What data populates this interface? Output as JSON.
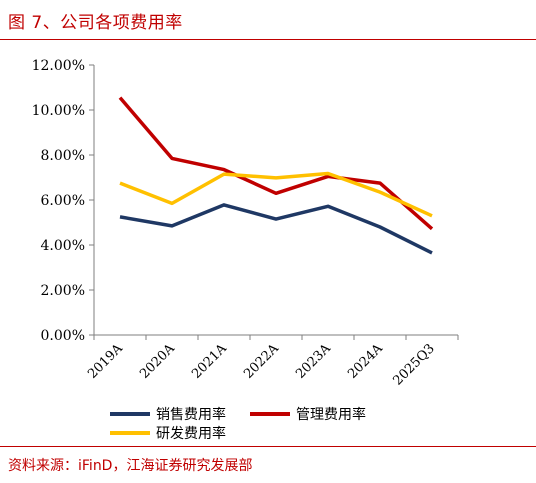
{
  "figure": {
    "title": "图 7、公司各项费用率",
    "source": "资料来源：iFinD，江海证券研究发展部"
  },
  "colors": {
    "accent": "#c00000"
  },
  "chart_data": {
    "type": "line",
    "categories": [
      "2019A",
      "2020A",
      "2021A",
      "2022A",
      "2023A",
      "2024A",
      "2025Q3"
    ],
    "series": [
      {
        "name": "销售费用率",
        "color": "#1f3864",
        "values": [
          5.25,
          4.85,
          5.78,
          5.15,
          5.72,
          4.8,
          3.65
        ]
      },
      {
        "name": "管理费用率",
        "color": "#c00000",
        "values": [
          10.55,
          7.85,
          7.35,
          6.3,
          7.05,
          6.75,
          4.72
        ]
      },
      {
        "name": "研发费用率",
        "color": "#ffc000",
        "values": [
          6.75,
          5.85,
          7.15,
          6.98,
          7.18,
          6.35,
          5.3
        ]
      }
    ],
    "ylim": [
      0,
      12
    ],
    "yticks": [
      "0.00%",
      "2.00%",
      "4.00%",
      "6.00%",
      "8.00%",
      "10.00%",
      "12.00%"
    ],
    "grid": false,
    "legend_position": "bottom"
  }
}
